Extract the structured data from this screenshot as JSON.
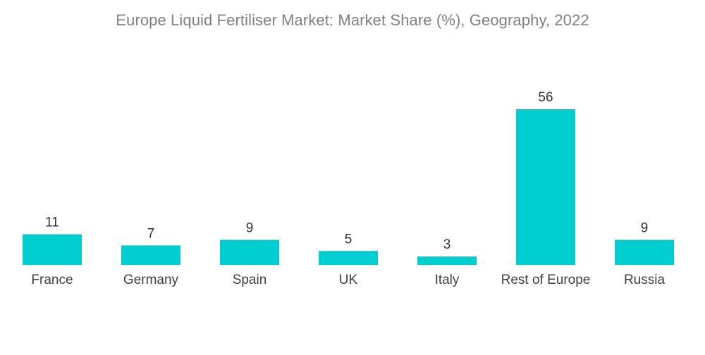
{
  "chart_data": {
    "type": "bar",
    "title": "Europe Liquid Fertiliser Market: Market Share (%), Geography,  2022",
    "xlabel": "",
    "ylabel": "",
    "categories": [
      "France",
      "Germany",
      "Spain",
      "UK",
      "Italy",
      "Rest of Europe",
      "Russia"
    ],
    "values": [
      11,
      7,
      9,
      5,
      3,
      56,
      9
    ],
    "ylim": [
      0,
      56
    ],
    "grid": false,
    "legend": "none",
    "bar_color": "#00ced1"
  }
}
